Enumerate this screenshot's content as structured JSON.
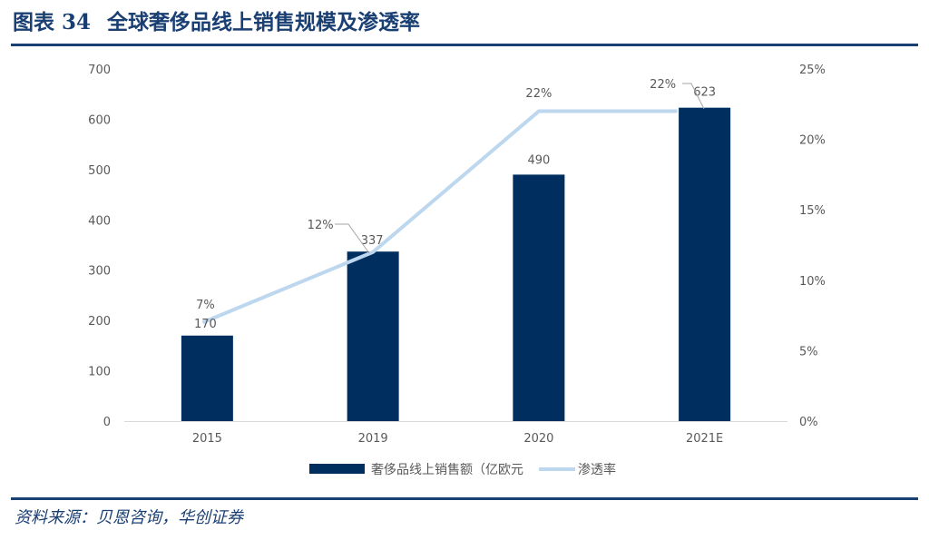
{
  "figure": {
    "number": "图表 34",
    "title": "全球奢侈品线上销售规模及渗透率"
  },
  "source": "资料来源：贝恩咨询，华创证券",
  "colors": {
    "title": "#1a3f73",
    "bar": "#002f5f",
    "line": "#bdd7ee",
    "axis_text": "#595959"
  },
  "chart_data": {
    "type": "bar",
    "categories": [
      "2015",
      "2019",
      "2020",
      "2021E"
    ],
    "series": [
      {
        "name": "奢侈品线上销售额（亿欧元",
        "type": "bar",
        "axis": "left",
        "values": [
          170,
          337,
          490,
          623
        ],
        "labels": [
          "170",
          "337",
          "490",
          "623"
        ]
      },
      {
        "name": "渗透率",
        "type": "line",
        "axis": "right",
        "values": [
          7,
          12,
          22,
          22
        ],
        "labels": [
          "7%",
          "12%",
          "22%",
          "22%"
        ]
      }
    ],
    "y_left": {
      "ylim": [
        0,
        700
      ],
      "ticks": [
        "0",
        "100",
        "200",
        "300",
        "400",
        "500",
        "600",
        "700"
      ]
    },
    "y_right": {
      "ylim": [
        0,
        25
      ],
      "ticks": [
        "0%",
        "5%",
        "10%",
        "15%",
        "20%",
        "25%"
      ]
    },
    "grid": false,
    "legend": "bottom-center"
  }
}
